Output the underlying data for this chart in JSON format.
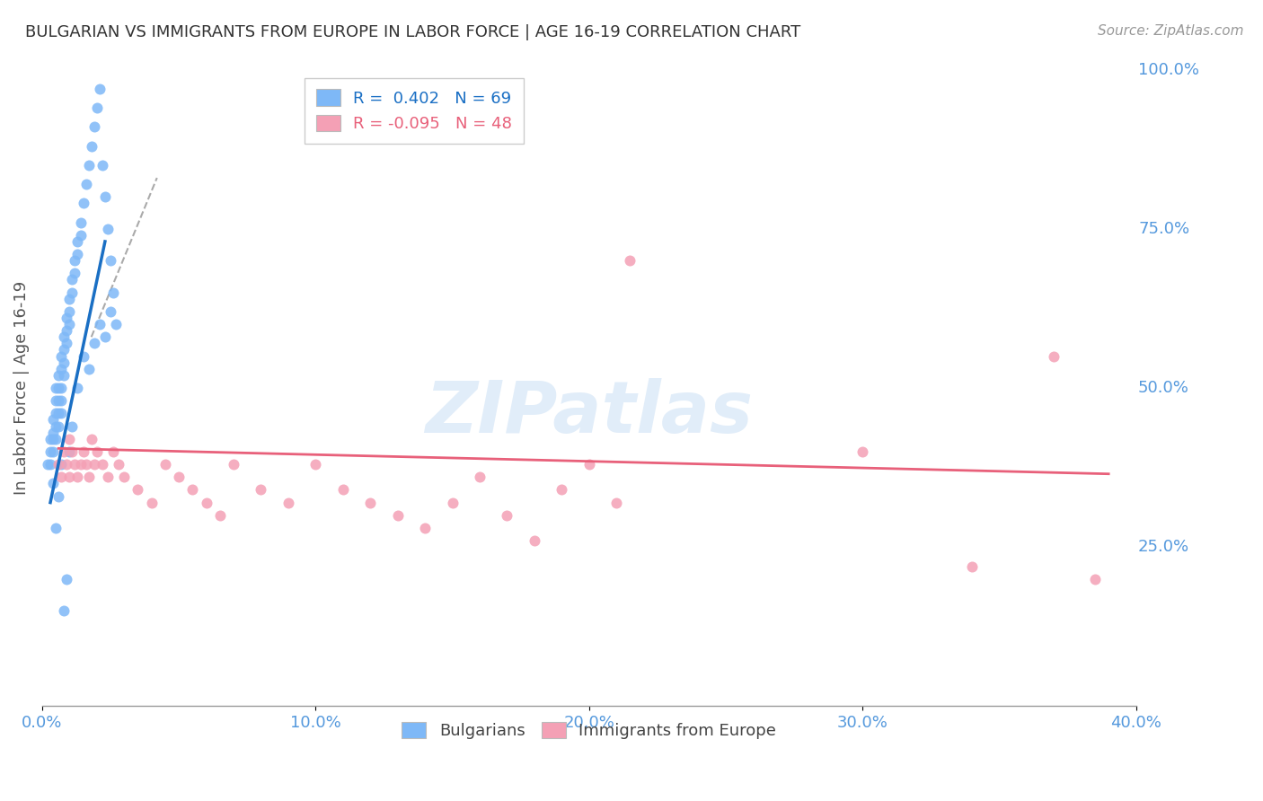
{
  "title": "BULGARIAN VS IMMIGRANTS FROM EUROPE IN LABOR FORCE | AGE 16-19 CORRELATION CHART",
  "source": "Source: ZipAtlas.com",
  "ylabel": "In Labor Force | Age 16-19",
  "xlim": [
    0.0,
    0.4
  ],
  "ylim": [
    0.0,
    1.0
  ],
  "xtick_labels": [
    "0.0%",
    "10.0%",
    "20.0%",
    "30.0%",
    "40.0%"
  ],
  "xtick_vals": [
    0.0,
    0.1,
    0.2,
    0.3,
    0.4
  ],
  "ytick_labels": [
    "25.0%",
    "50.0%",
    "75.0%",
    "100.0%"
  ],
  "ytick_vals": [
    0.25,
    0.5,
    0.75,
    1.0
  ],
  "bulgarian_color": "#7EB8F7",
  "immigrant_color": "#F4A0B5",
  "blue_line_color": "#1A6FC4",
  "pink_line_color": "#E8607A",
  "dashed_line_color": "#AAAAAA",
  "legend_R_blue": "0.402",
  "legend_N_blue": "69",
  "legend_R_pink": "-0.095",
  "legend_N_pink": "48",
  "axis_label_color": "#5599DD",
  "watermark": "ZIPatlas",
  "bulgarian_x": [
    0.002,
    0.003,
    0.003,
    0.003,
    0.004,
    0.004,
    0.004,
    0.004,
    0.005,
    0.005,
    0.005,
    0.005,
    0.005,
    0.006,
    0.006,
    0.006,
    0.006,
    0.006,
    0.007,
    0.007,
    0.007,
    0.007,
    0.007,
    0.008,
    0.008,
    0.008,
    0.008,
    0.009,
    0.009,
    0.009,
    0.01,
    0.01,
    0.01,
    0.011,
    0.011,
    0.012,
    0.012,
    0.013,
    0.013,
    0.014,
    0.014,
    0.015,
    0.016,
    0.017,
    0.018,
    0.019,
    0.02,
    0.021,
    0.022,
    0.023,
    0.024,
    0.025,
    0.026,
    0.027,
    0.004,
    0.005,
    0.006,
    0.007,
    0.008,
    0.009,
    0.01,
    0.011,
    0.013,
    0.015,
    0.017,
    0.019,
    0.021,
    0.023,
    0.025
  ],
  "bulgarian_y": [
    0.38,
    0.42,
    0.4,
    0.38,
    0.43,
    0.45,
    0.42,
    0.4,
    0.48,
    0.5,
    0.46,
    0.44,
    0.42,
    0.52,
    0.5,
    0.48,
    0.46,
    0.44,
    0.55,
    0.53,
    0.5,
    0.48,
    0.46,
    0.58,
    0.56,
    0.54,
    0.52,
    0.61,
    0.59,
    0.57,
    0.64,
    0.62,
    0.6,
    0.67,
    0.65,
    0.7,
    0.68,
    0.73,
    0.71,
    0.76,
    0.74,
    0.79,
    0.82,
    0.85,
    0.88,
    0.91,
    0.94,
    0.97,
    0.85,
    0.8,
    0.75,
    0.7,
    0.65,
    0.6,
    0.35,
    0.28,
    0.33,
    0.38,
    0.15,
    0.2,
    0.4,
    0.44,
    0.5,
    0.55,
    0.53,
    0.57,
    0.6,
    0.58,
    0.62
  ],
  "immigrant_x": [
    0.006,
    0.007,
    0.008,
    0.009,
    0.01,
    0.01,
    0.011,
    0.012,
    0.013,
    0.014,
    0.015,
    0.016,
    0.017,
    0.018,
    0.019,
    0.02,
    0.022,
    0.024,
    0.026,
    0.028,
    0.03,
    0.035,
    0.04,
    0.045,
    0.05,
    0.055,
    0.06,
    0.065,
    0.07,
    0.08,
    0.09,
    0.1,
    0.11,
    0.12,
    0.13,
    0.14,
    0.15,
    0.16,
    0.17,
    0.18,
    0.19,
    0.2,
    0.21,
    0.215,
    0.3,
    0.34,
    0.37,
    0.385
  ],
  "immigrant_y": [
    0.38,
    0.36,
    0.4,
    0.38,
    0.42,
    0.36,
    0.4,
    0.38,
    0.36,
    0.38,
    0.4,
    0.38,
    0.36,
    0.42,
    0.38,
    0.4,
    0.38,
    0.36,
    0.4,
    0.38,
    0.36,
    0.34,
    0.32,
    0.38,
    0.36,
    0.34,
    0.32,
    0.3,
    0.38,
    0.34,
    0.32,
    0.38,
    0.34,
    0.32,
    0.3,
    0.28,
    0.32,
    0.36,
    0.3,
    0.26,
    0.34,
    0.38,
    0.32,
    0.7,
    0.4,
    0.22,
    0.55,
    0.2
  ],
  "blue_line_x": [
    0.003,
    0.023
  ],
  "blue_line_y": [
    0.32,
    0.73
  ],
  "pink_line_x": [
    0.006,
    0.39
  ],
  "pink_line_y": [
    0.405,
    0.365
  ],
  "dashed_line_x": [
    0.018,
    0.042
  ],
  "dashed_line_y": [
    0.58,
    0.83
  ]
}
